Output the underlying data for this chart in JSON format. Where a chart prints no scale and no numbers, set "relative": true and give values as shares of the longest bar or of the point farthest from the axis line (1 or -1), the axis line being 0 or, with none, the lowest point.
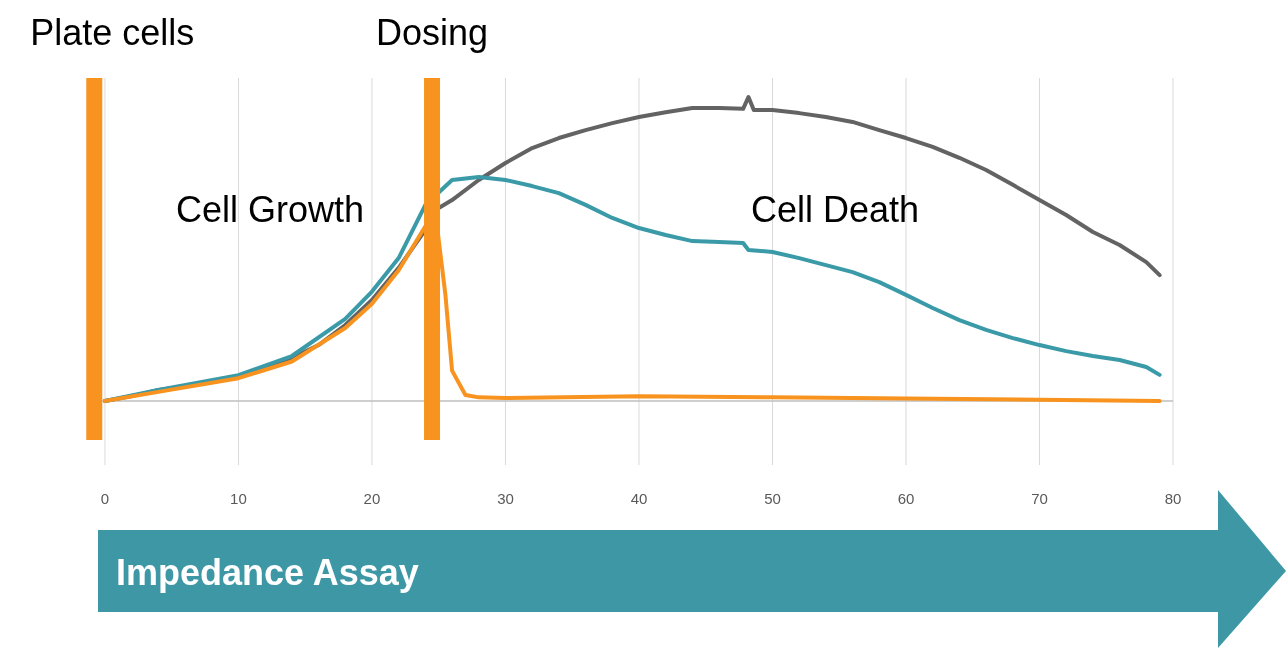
{
  "chart_data": {
    "type": "line",
    "relative": true,
    "xlim": [
      -1,
      80
    ],
    "xticks": [
      0,
      10,
      20,
      30,
      40,
      50,
      60,
      70,
      80
    ],
    "grid": "x",
    "tick_labels": "x",
    "marker": "none",
    "line_style": "solid",
    "series": [
      {
        "color": "#636363",
        "x": [
          0,
          2,
          4,
          6,
          8,
          10,
          12,
          14,
          16,
          18,
          20,
          22,
          24,
          25,
          26,
          28,
          30,
          32,
          34,
          36,
          38,
          40,
          42,
          44,
          46,
          47.8,
          48.2,
          48.6,
          50,
          52,
          54,
          56,
          58,
          60,
          62,
          64,
          66,
          68,
          70,
          72,
          74,
          76,
          78,
          79
        ],
        "values": [
          0,
          0.016,
          0.036,
          0.049,
          0.063,
          0.082,
          0.109,
          0.141,
          0.184,
          0.25,
          0.332,
          0.438,
          0.563,
          0.635,
          0.661,
          0.727,
          0.783,
          0.832,
          0.865,
          0.891,
          0.914,
          0.934,
          0.95,
          0.964,
          0.964,
          0.961,
          1,
          0.957,
          0.957,
          0.947,
          0.934,
          0.918,
          0.891,
          0.865,
          0.836,
          0.8,
          0.76,
          0.711,
          0.661,
          0.612,
          0.556,
          0.513,
          0.457,
          0.414
        ]
      },
      {
        "color": "#3a9aa8",
        "x": [
          0,
          4,
          10,
          14,
          18,
          20,
          22,
          24,
          26,
          28,
          30,
          32,
          34,
          36,
          38,
          40,
          42,
          44,
          46,
          47.8,
          48.2,
          50,
          52,
          54,
          56,
          58,
          60,
          62,
          64,
          66,
          68,
          70,
          72,
          74,
          76,
          78,
          79
        ],
        "values": [
          0,
          0.036,
          0.085,
          0.148,
          0.27,
          0.36,
          0.47,
          0.645,
          0.727,
          0.737,
          0.727,
          0.707,
          0.684,
          0.645,
          0.602,
          0.569,
          0.546,
          0.526,
          0.523,
          0.52,
          0.497,
          0.49,
          0.47,
          0.447,
          0.424,
          0.391,
          0.349,
          0.306,
          0.266,
          0.234,
          0.207,
          0.184,
          0.164,
          0.148,
          0.135,
          0.112,
          0.086
        ]
      },
      {
        "color": "#f7931e",
        "x": [
          0,
          4,
          10,
          14,
          18,
          20,
          22,
          24,
          24.8,
          25.5,
          26,
          27,
          28,
          30,
          40,
          50,
          60,
          70,
          79
        ],
        "values": [
          0,
          0.03,
          0.075,
          0.13,
          0.24,
          0.32,
          0.43,
          0.575,
          0.6,
          0.35,
          0.1,
          0.02,
          0.012,
          0.01,
          0.016,
          0.012,
          0.008,
          0.004,
          0
        ]
      }
    ],
    "ref_lines": [
      {
        "axis": "x",
        "value": -0.8,
        "label": "Plate cells",
        "color": "#f7931e"
      },
      {
        "axis": "x",
        "value": 24.5,
        "label": "Dosing",
        "color": "#f7931e"
      }
    ],
    "annotations": [
      "Cell Growth",
      "Cell Death",
      "Impedance Assay"
    ]
  }
}
